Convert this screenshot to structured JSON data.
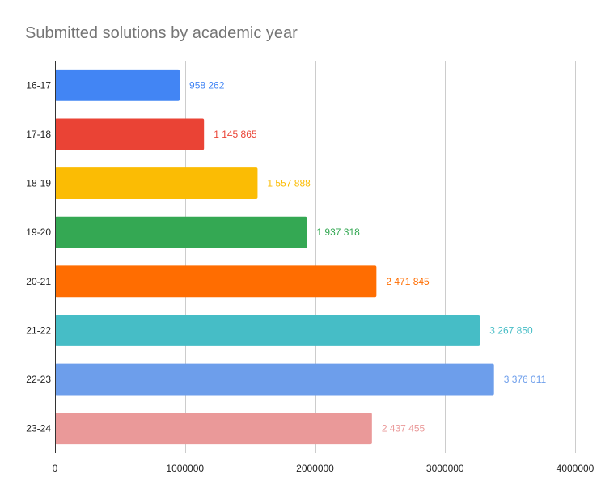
{
  "chart_data": {
    "type": "bar",
    "orientation": "horizontal",
    "title": "Submitted solutions by academic year",
    "xlabel": "",
    "ylabel": "",
    "categories": [
      "16-17",
      "17-18",
      "18-19",
      "19-20",
      "20-21",
      "21-22",
      "22-23",
      "23-24"
    ],
    "values": [
      958262,
      1145865,
      1557888,
      1937318,
      2471845,
      3267850,
      3376011,
      2437455
    ],
    "data_labels": [
      "958 262",
      "1 145 865",
      "1 557 888",
      "1 937 318",
      "2 471 845",
      "3 267 850",
      "3 376 011",
      "2 437 455"
    ],
    "bar_colors": [
      "#4285f4",
      "#ea4335",
      "#fbbc04",
      "#34a853",
      "#ff6d01",
      "#46bdc6",
      "#6d9eeb",
      "#ea9999"
    ],
    "xlim": [
      0,
      4000000
    ],
    "x_ticks": [
      0,
      1000000,
      2000000,
      3000000,
      4000000
    ],
    "x_tick_labels": [
      "0",
      "1000000",
      "2000000",
      "3000000",
      "4000000"
    ],
    "grid": true,
    "legend": "none"
  }
}
